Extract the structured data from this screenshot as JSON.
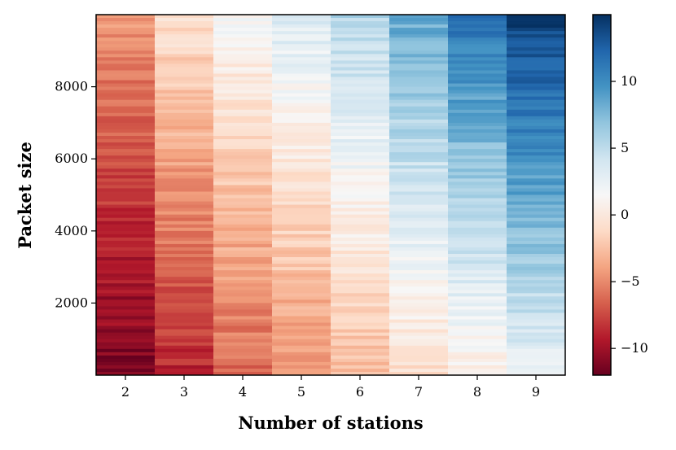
{
  "chart_data": {
    "type": "heatmap",
    "xlabel": "Number of stations",
    "ylabel": "Packet size",
    "x_categories": [
      "2",
      "3",
      "4",
      "5",
      "6",
      "7",
      "8",
      "9"
    ],
    "y_range": [
      0,
      10000
    ],
    "y_ticks": [
      2000,
      4000,
      6000,
      8000
    ],
    "y_tick_labels": [
      "2000",
      "4000",
      "6000",
      "8000"
    ],
    "colormap": "RdBu",
    "colorbar": {
      "range": [
        -12,
        15
      ],
      "ticks": [
        -10,
        -5,
        0,
        5,
        10
      ],
      "tick_labels": [
        "−10",
        "−5",
        "0",
        "5",
        "10"
      ]
    },
    "value_trend_note_free": true,
    "columns": [
      {
        "station": "2",
        "value_at_top": -4.5,
        "value_at_bottom": -11.5
      },
      {
        "station": "3",
        "value_at_top": -0.5,
        "value_at_bottom": -9.0
      },
      {
        "station": "4",
        "value_at_top": 1.5,
        "value_at_bottom": -6.5
      },
      {
        "station": "5",
        "value_at_top": 3.5,
        "value_at_bottom": -5.0
      },
      {
        "station": "6",
        "value_at_top": 5.5,
        "value_at_bottom": -3.0
      },
      {
        "station": "7",
        "value_at_top": 8.5,
        "value_at_bottom": -1.0
      },
      {
        "station": "8",
        "value_at_top": 11.5,
        "value_at_bottom": 0.5
      },
      {
        "station": "9",
        "value_at_top": 14.5,
        "value_at_bottom": 2.5
      }
    ]
  }
}
